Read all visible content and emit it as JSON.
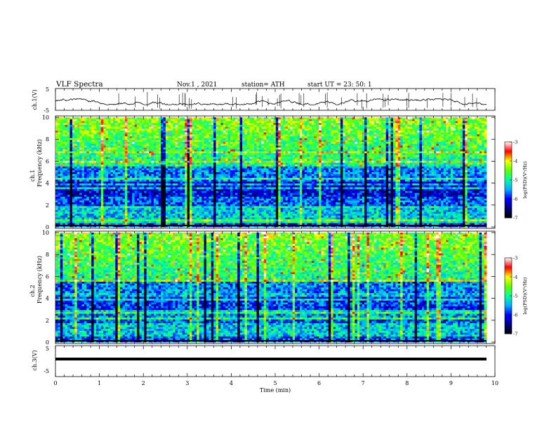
{
  "header": {
    "title": "VLF  Spectra",
    "date": "Nov.1  , 2021",
    "station": "station= ATH",
    "start": "start  UT  =    23: 50: 1"
  },
  "chart_data": [
    {
      "type": "line",
      "name": "ch1-waveform",
      "ylabel": "ch.1(V)",
      "ylim": [
        -5,
        5
      ],
      "yticks": [
        "5",
        "-5"
      ],
      "xlim": [
        0,
        10
      ],
      "notes": "broadband VLF waveform trace near -1.5 V with frequent sferic spikes"
    },
    {
      "type": "heatmap",
      "name": "ch1-spectrogram",
      "ylabel": "ch.1\nFrequency  (kHz)",
      "yticks": [
        "0",
        "2",
        "4",
        "6",
        "8",
        "10"
      ],
      "ylim": [
        0,
        10
      ],
      "xlim": [
        0,
        9.83
      ],
      "colorbar": {
        "label": "log(PSD)(V²/Hz)",
        "ticks": [
          "-3",
          "-4",
          "-5",
          "-6",
          "-7"
        ],
        "range": [
          -7,
          -3
        ]
      }
    },
    {
      "type": "heatmap",
      "name": "ch2-spectrogram",
      "ylabel": "ch.2\nFrequency  (kHz)",
      "yticks": [
        "0",
        "2",
        "4",
        "6",
        "8",
        "10"
      ],
      "ylim": [
        0,
        10
      ],
      "xlim": [
        0,
        9.83
      ],
      "colorbar": {
        "label": "log(PSD)(V²/Hz)",
        "ticks": [
          "-3",
          "-4",
          "-5",
          "-6",
          "-7"
        ],
        "range": [
          -7,
          -3
        ]
      }
    },
    {
      "type": "line",
      "name": "ch3-waveform",
      "ylabel": "ch.3(V)",
      "ylim": [
        -5,
        5
      ],
      "yticks": [
        "5",
        "-5"
      ],
      "xlim": [
        0,
        10
      ],
      "notes": "flat thick trace near -2 V"
    }
  ],
  "xaxis": {
    "label": "Time  (min)",
    "ticks": [
      "0",
      "1",
      "2",
      "3",
      "4",
      "5",
      "6",
      "7",
      "8",
      "9",
      "10"
    ]
  },
  "colors": {
    "scale": [
      "#000000",
      "#000080",
      "#0000ff",
      "#00b0ff",
      "#00ffa0",
      "#60ff00",
      "#ffff00",
      "#ff0000",
      "#ffffff"
    ]
  }
}
